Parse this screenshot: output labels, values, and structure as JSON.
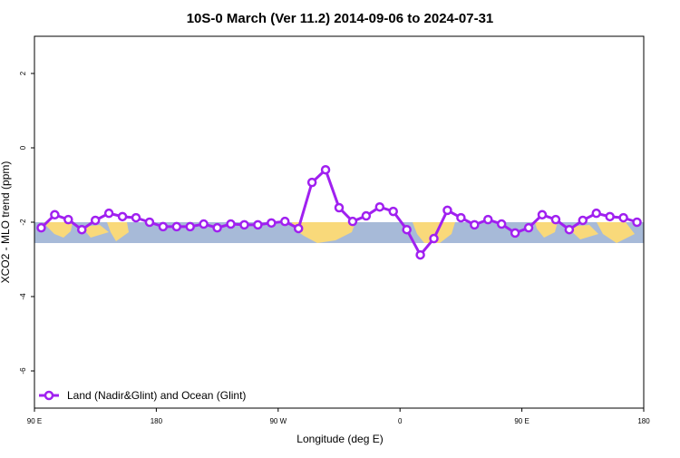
{
  "chart_data": {
    "type": "line",
    "title": "10S-0 March (Ver 11.2)   2014-09-06 to 2024-07-31",
    "x_label": "Longitude (deg E)",
    "y_label": "XCO2 - MLO trend (ppm)",
    "xlim": [
      90,
      540
    ],
    "ylim": [
      -7,
      3
    ],
    "xticks": [
      {
        "value": 90,
        "label": "90 E"
      },
      180,
      {
        "value": 270,
        "label": "90 W"
      },
      {
        "value": 360,
        "label": "0"
      },
      {
        "value": 450,
        "label": "90 E"
      },
      {
        "value": 540,
        "label": "180"
      }
    ],
    "yticks": [
      2,
      0,
      -2,
      -4,
      -6
    ],
    "legend": "bottom-left",
    "x": [
      95,
      105,
      115,
      125,
      135,
      145,
      155,
      165,
      175,
      185,
      195,
      205,
      215,
      225,
      235,
      245,
      255,
      265,
      275,
      285,
      295,
      305,
      315,
      325,
      335,
      345,
      355,
      365,
      375,
      385,
      395,
      405,
      415,
      425,
      435,
      445,
      455,
      465,
      475,
      485,
      495,
      505,
      515,
      525,
      535
    ],
    "series": [
      {
        "name": "Land (Nadir&Glint) and Ocean (Glint)",
        "color": "#a020f0",
        "values": [
          -2.15,
          -1.8,
          -1.93,
          -2.2,
          -1.95,
          -1.76,
          -1.85,
          -1.88,
          -2.0,
          -2.12,
          -2.12,
          -2.12,
          -2.05,
          -2.15,
          -2.05,
          -2.07,
          -2.07,
          -2.02,
          -1.98,
          -2.17,
          -0.93,
          -0.59,
          -1.61,
          -1.98,
          -1.83,
          -1.59,
          -1.71,
          -2.2,
          -2.88,
          -2.44,
          -1.68,
          -1.88,
          -2.07,
          -1.93,
          -2.05,
          -2.29,
          -2.15,
          -1.8,
          -1.93,
          -2.2,
          -1.95,
          -1.76,
          -1.85,
          -1.88,
          -2.0
        ]
      }
    ]
  }
}
